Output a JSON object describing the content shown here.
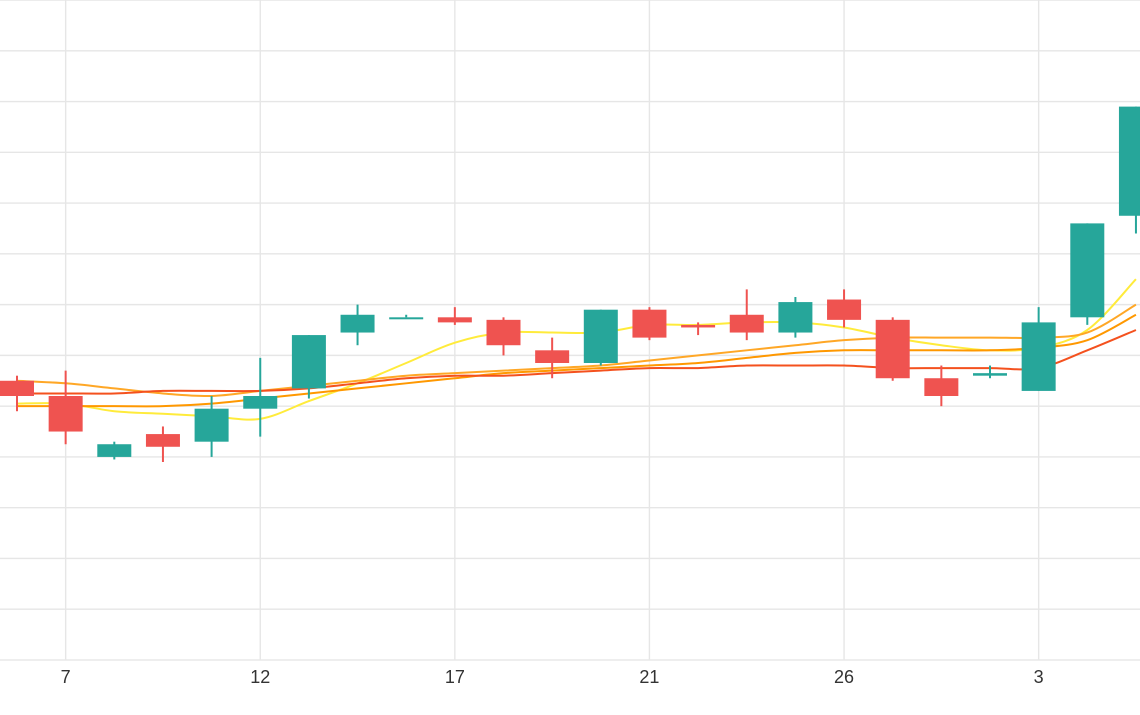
{
  "chart_data": {
    "type": "candlestick",
    "title": "",
    "xlabel": "",
    "ylabel": "",
    "x_tick_labels": [
      "7",
      "12",
      "17",
      "21",
      "26",
      "3"
    ],
    "ylim": [
      0,
      13
    ],
    "grid": true,
    "legend": "none",
    "colors": {
      "up": "#26a69a",
      "down": "#ef5350",
      "grid": "#e6e6e6",
      "ma_yellow": "#ffeb3b",
      "ma_orange_light": "#ffa726",
      "ma_orange": "#ff9800",
      "ma_red": "#f4511e"
    },
    "candles": [
      {
        "index": 0,
        "open": 5.5,
        "high": 5.6,
        "low": 4.9,
        "close": 5.2
      },
      {
        "index": 1,
        "open": 5.2,
        "high": 5.7,
        "low": 4.25,
        "close": 4.5
      },
      {
        "index": 2,
        "open": 4.0,
        "high": 4.3,
        "low": 3.95,
        "close": 4.25
      },
      {
        "index": 3,
        "open": 4.45,
        "high": 4.6,
        "low": 3.9,
        "close": 4.2
      },
      {
        "index": 4,
        "open": 4.3,
        "high": 5.2,
        "low": 4.0,
        "close": 4.95
      },
      {
        "index": 5,
        "open": 4.95,
        "high": 5.95,
        "low": 4.4,
        "close": 5.2
      },
      {
        "index": 6,
        "open": 5.35,
        "high": 6.4,
        "low": 5.15,
        "close": 6.4
      },
      {
        "index": 7,
        "open": 6.45,
        "high": 7.0,
        "low": 6.2,
        "close": 6.8
      },
      {
        "index": 8,
        "open": 6.75,
        "high": 6.8,
        "low": 6.75,
        "close": 6.75
      },
      {
        "index": 9,
        "open": 6.75,
        "high": 6.95,
        "low": 6.6,
        "close": 6.65
      },
      {
        "index": 10,
        "open": 6.7,
        "high": 6.75,
        "low": 6.0,
        "close": 6.2
      },
      {
        "index": 11,
        "open": 6.1,
        "high": 6.35,
        "low": 5.55,
        "close": 5.85
      },
      {
        "index": 12,
        "open": 5.85,
        "high": 6.9,
        "low": 5.8,
        "close": 6.9
      },
      {
        "index": 13,
        "open": 6.9,
        "high": 6.95,
        "low": 6.3,
        "close": 6.35
      },
      {
        "index": 14,
        "open": 6.6,
        "high": 6.65,
        "low": 6.4,
        "close": 6.55
      },
      {
        "index": 15,
        "open": 6.8,
        "high": 7.3,
        "low": 6.3,
        "close": 6.45
      },
      {
        "index": 16,
        "open": 6.45,
        "high": 7.15,
        "low": 6.35,
        "close": 7.05
      },
      {
        "index": 17,
        "open": 7.1,
        "high": 7.3,
        "low": 6.55,
        "close": 6.7
      },
      {
        "index": 18,
        "open": 6.7,
        "high": 6.75,
        "low": 5.5,
        "close": 5.55
      },
      {
        "index": 19,
        "open": 5.55,
        "high": 5.8,
        "low": 5.0,
        "close": 5.2
      },
      {
        "index": 20,
        "open": 5.6,
        "high": 5.8,
        "low": 5.55,
        "close": 5.65
      },
      {
        "index": 21,
        "open": 5.3,
        "high": 6.95,
        "low": 5.3,
        "close": 6.65
      },
      {
        "index": 22,
        "open": 6.75,
        "high": 8.6,
        "low": 6.6,
        "close": 8.6
      },
      {
        "index": 23,
        "open": 8.75,
        "high": 10.9,
        "low": 8.4,
        "close": 10.9
      }
    ],
    "series": [
      {
        "type": "line",
        "color": "#ffeb3b",
        "values": [
          5.05,
          5.05,
          4.9,
          4.85,
          4.8,
          4.75,
          5.1,
          5.45,
          5.85,
          6.25,
          6.45,
          6.45,
          6.45,
          6.6,
          6.6,
          6.65,
          6.65,
          6.55,
          6.35,
          6.2,
          6.1,
          6.15,
          6.5,
          7.5
        ]
      },
      {
        "type": "line",
        "color": "#ffa726",
        "values": [
          5.5,
          5.45,
          5.35,
          5.25,
          5.2,
          5.3,
          5.4,
          5.5,
          5.6,
          5.65,
          5.7,
          5.75,
          5.8,
          5.9,
          6.0,
          6.1,
          6.2,
          6.3,
          6.35,
          6.35,
          6.35,
          6.35,
          6.45,
          7.0
        ]
      },
      {
        "type": "line",
        "color": "#ff9800",
        "values": [
          5.0,
          5.0,
          5.0,
          5.0,
          5.05,
          5.15,
          5.25,
          5.35,
          5.45,
          5.55,
          5.65,
          5.7,
          5.75,
          5.8,
          5.85,
          5.95,
          6.05,
          6.1,
          6.1,
          6.1,
          6.1,
          6.15,
          6.3,
          6.8
        ]
      },
      {
        "type": "line",
        "color": "#f4511e",
        "values": [
          5.25,
          5.25,
          5.25,
          5.3,
          5.3,
          5.3,
          5.35,
          5.45,
          5.55,
          5.6,
          5.6,
          5.65,
          5.7,
          5.75,
          5.75,
          5.8,
          5.8,
          5.8,
          5.75,
          5.75,
          5.75,
          5.75,
          6.1,
          6.5
        ]
      }
    ]
  }
}
